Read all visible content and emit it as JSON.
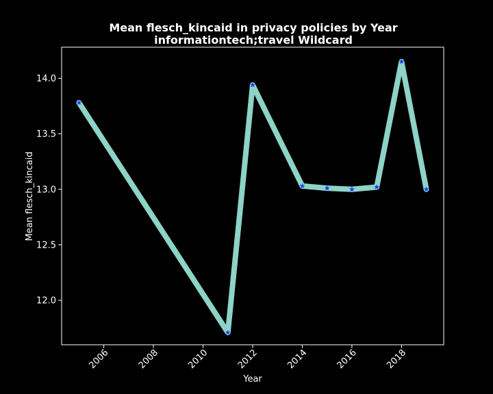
{
  "chart_data": {
    "type": "line",
    "title": "Mean flesch_kincaid in privacy policies by Year",
    "subtitle": "informationtech;travel Wildcard",
    "xlabel": "Year",
    "ylabel": "Mean flesch_kincaid",
    "x": [
      2005,
      2011,
      2012,
      2014,
      2015,
      2016,
      2017,
      2018,
      2019
    ],
    "series": [
      {
        "values": [
          13.78,
          11.71,
          13.94,
          13.03,
          13.01,
          13.0,
          13.02,
          14.15,
          13.0
        ],
        "line_color": "#8dd3c7",
        "marker_color": "#1f3cff",
        "marker": "star"
      }
    ],
    "xlim": [
      2004.3,
      2019.7
    ],
    "ylim": [
      11.6,
      14.28
    ],
    "xticks": [
      2006,
      2008,
      2010,
      2012,
      2014,
      2016,
      2018
    ],
    "xtick_labels": [
      "2006",
      "2008",
      "2010",
      "2012",
      "2014",
      "2016",
      "2018"
    ],
    "yticks": [
      12.0,
      12.5,
      13.0,
      13.5,
      14.0
    ],
    "ytick_labels": [
      "12.0",
      "12.5",
      "13.0",
      "13.5",
      "14.0"
    ],
    "grid": false,
    "background": "#000000",
    "axis_color": "#ffffff"
  }
}
